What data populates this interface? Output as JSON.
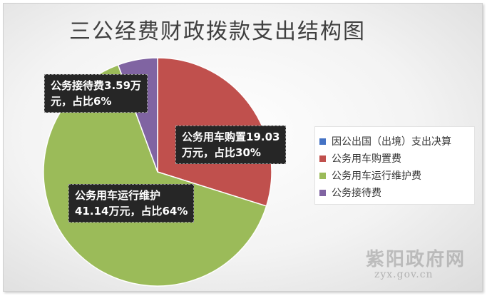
{
  "chart_data": {
    "type": "pie",
    "title": "三公经费财政拨款支出结构图",
    "legend_position": "right",
    "series": [
      {
        "name": "因公出国（出境）支出决算",
        "value": 0,
        "color": "#4472C4"
      },
      {
        "name": "公务用车购置费",
        "value": 19.03,
        "color": "#C0504D"
      },
      {
        "name": "公务用车运行维护费",
        "value": 41.14,
        "color": "#9BBB59"
      },
      {
        "name": "公务接待费",
        "value": 3.59,
        "color": "#8064A2"
      }
    ],
    "data_labels": [
      {
        "series": "公务接待费",
        "line1": "公务接待费3.59万",
        "line2": "元，占比6%"
      },
      {
        "series": "公务用车购置费",
        "line1": "公务用车购置19.03",
        "line2": "万元，占比30%"
      },
      {
        "series": "公务用车运行维护费",
        "line1": "公务用车运行维护",
        "line2": "41.14万元，占比64%"
      }
    ]
  },
  "watermark": {
    "name": "紫阳政府网",
    "url": "zyx.gov.cn"
  }
}
